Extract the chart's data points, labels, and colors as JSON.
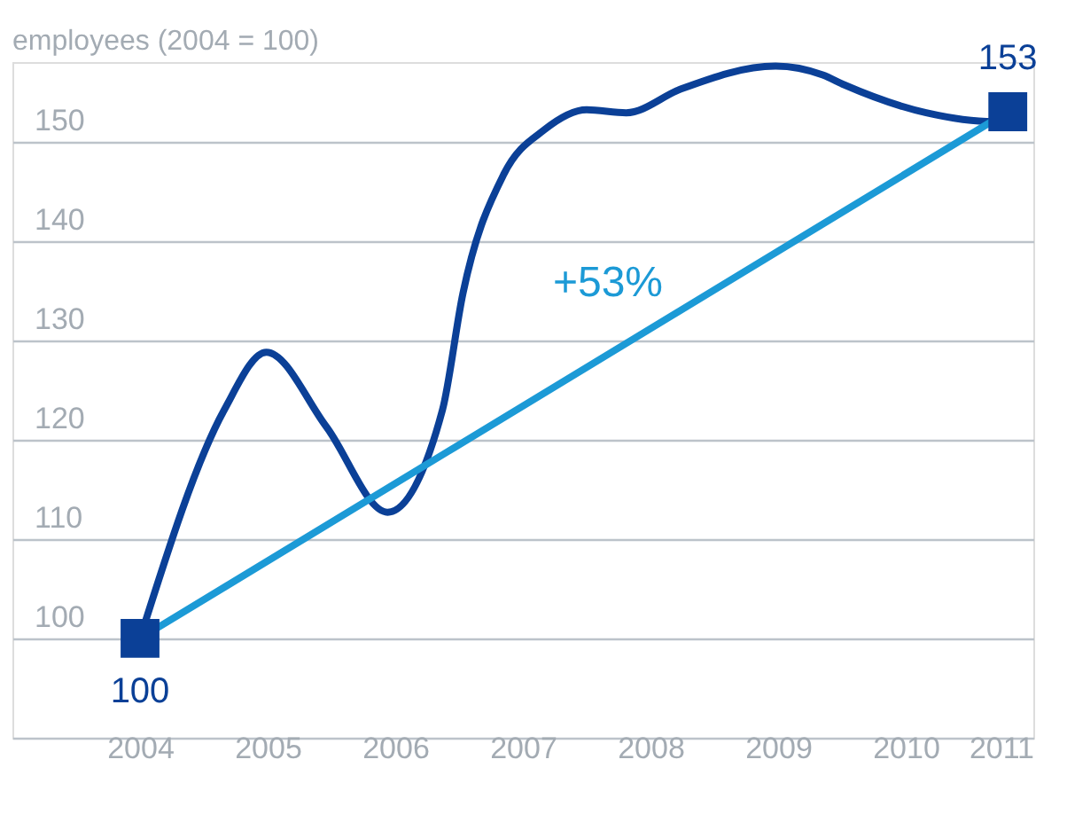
{
  "chart_data": {
    "type": "line",
    "title": "employees (2004 = 100)",
    "xlim": [
      2003,
      2011
    ],
    "xticks": [
      2004,
      2005,
      2006,
      2007,
      2008,
      2009,
      2010,
      2011
    ],
    "ylim": [
      90,
      158
    ],
    "yticks": [
      {
        "value": 90,
        "label": null
      },
      100,
      110,
      120,
      130,
      140,
      150
    ],
    "grid": "y",
    "line_style": "solid",
    "series": [
      {
        "color": "#0b4097",
        "marker": "none",
        "x": [
          2004,
          2004.66,
          2004.99,
          2005.46,
          2005.94,
          2006.37,
          2006.53,
          2006.85,
          2007.17,
          2007.5,
          2007.81,
          2008.24,
          2008.98,
          2009.35,
          2009.52,
          2010.16,
          2010.69,
          2010.8
        ],
        "values": [
          100,
          123,
          128.8,
          121.3,
          112.7,
          123,
          134.7,
          146.7,
          151.2,
          153.2,
          152.9,
          155.3,
          157.6,
          156.7,
          155.7,
          152.9,
          152,
          153
        ]
      },
      {
        "color": "#1c9ad6",
        "marker": "none",
        "x": [
          2004,
          2010.8
        ],
        "values": [
          100,
          153
        ]
      },
      {
        "type": "scatter",
        "color": "#0b4097",
        "marker": "square",
        "x": [
          2004,
          2010.8
        ],
        "values": [
          100,
          153
        ],
        "value_labels": [
          "100",
          "153"
        ]
      }
    ],
    "annotations": [
      "+53%"
    ]
  }
}
